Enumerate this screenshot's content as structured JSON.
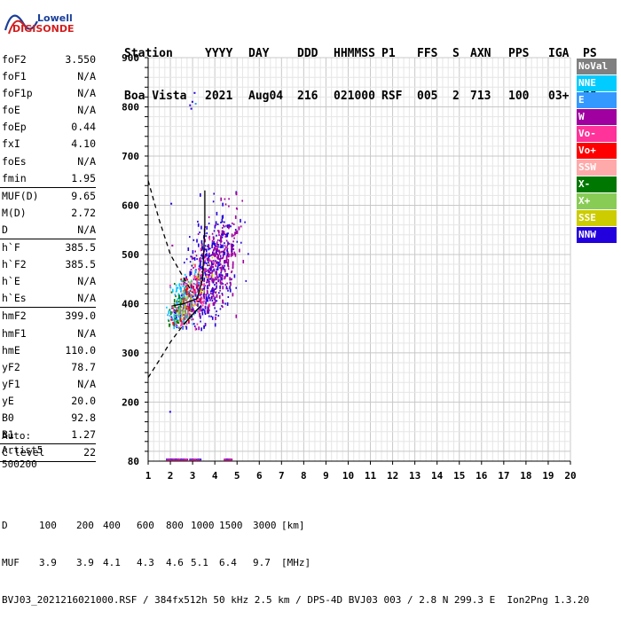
{
  "logo": {
    "line1": "Lowell",
    "line2": "DIGISONDE"
  },
  "header": {
    "labels": [
      "Station",
      "YYYY",
      "DAY",
      "DDD",
      "HHMMSS",
      "P1",
      "FFS",
      "S",
      "AXN",
      "PPS",
      "IGA",
      "PS"
    ],
    "values": [
      "Boa Vista",
      "2021",
      "Aug04",
      "216",
      "021000",
      "RSF",
      "005",
      "2",
      "713",
      "100",
      "03+",
      "30"
    ]
  },
  "params": [
    {
      "name": "foF2",
      "value": "3.550"
    },
    {
      "name": "foF1",
      "value": "N/A"
    },
    {
      "name": "foF1p",
      "value": "N/A"
    },
    {
      "name": "foE",
      "value": "N/A"
    },
    {
      "name": "foEp",
      "value": "0.44"
    },
    {
      "name": "fxI",
      "value": "4.10"
    },
    {
      "name": "foEs",
      "value": "N/A"
    },
    {
      "name": "fmin",
      "value": "1.95"
    },
    {
      "sep": true
    },
    {
      "name": "MUF(D)",
      "value": "9.65"
    },
    {
      "name": "M(D)",
      "value": "2.72"
    },
    {
      "name": "D",
      "value": "N/A"
    },
    {
      "sep": true
    },
    {
      "name": "h`F",
      "value": "385.5"
    },
    {
      "name": "h`F2",
      "value": "385.5"
    },
    {
      "name": "h`E",
      "value": "N/A"
    },
    {
      "name": "h`Es",
      "value": "N/A"
    },
    {
      "sep": true
    },
    {
      "name": "hmF2",
      "value": "399.0"
    },
    {
      "name": "hmF1",
      "value": "N/A"
    },
    {
      "name": "hmE",
      "value": "110.0"
    },
    {
      "name": "yF2",
      "value": "78.7"
    },
    {
      "name": "yF1",
      "value": "N/A"
    },
    {
      "name": "yE",
      "value": "20.0"
    },
    {
      "name": "B0",
      "value": "92.8"
    },
    {
      "name": "B1",
      "value": "1.27"
    },
    {
      "sep": true
    },
    {
      "name": "C-level",
      "value": "22"
    },
    {
      "sep": true
    }
  ],
  "auto": {
    "line1": "Auto:",
    "line2": "Artist5",
    "line3": "500200"
  },
  "legend": [
    {
      "label": "NoVal",
      "bg": "#808080",
      "fg": "#ffffff"
    },
    {
      "label": "NNE",
      "bg": "#00ccff",
      "fg": "#ffffff"
    },
    {
      "label": "E",
      "bg": "#3399ff",
      "fg": "#ffffff"
    },
    {
      "label": "W",
      "bg": "#a000a0",
      "fg": "#ffffff"
    },
    {
      "label": "Vo-",
      "bg": "#ff3399",
      "fg": "#ffffff"
    },
    {
      "label": "Vo+",
      "bg": "#ff0000",
      "fg": "#ffffff"
    },
    {
      "label": "SSW",
      "bg": "#ffaaaa",
      "fg": "#ffffff"
    },
    {
      "label": "X-",
      "bg": "#007700",
      "fg": "#ffffff"
    },
    {
      "label": "X+",
      "bg": "#88cc55",
      "fg": "#ffffff"
    },
    {
      "label": "SSE",
      "bg": "#cccc00",
      "fg": "#ffffff"
    },
    {
      "label": "NNW",
      "bg": "#2200dd",
      "fg": "#ffffff"
    }
  ],
  "bottom": {
    "d_label": "D",
    "d_values": [
      "100",
      "200",
      "400",
      "600",
      "800",
      "1000",
      "1500",
      "3000"
    ],
    "d_unit": "[km]",
    "muf_label": "MUF",
    "muf_values": [
      "3.9",
      "3.9",
      "4.1",
      "4.3",
      "4.6",
      "5.1",
      "6.4",
      "9.7"
    ],
    "muf_unit": "[MHz]",
    "footer": "BVJ03_2021216021000.RSF / 384fx512h 50 kHz 2.5 km / DPS-4D BVJ03 003 / 2.8 N 299.3 E  Ion2Png 1.3.20"
  },
  "chart_data": {
    "type": "scatter",
    "xlim": [
      1,
      20
    ],
    "ylim": [
      80,
      900
    ],
    "x_ticks": [
      1,
      2,
      3,
      4,
      5,
      6,
      7,
      8,
      9,
      10,
      11,
      12,
      13,
      14,
      15,
      16,
      17,
      18,
      19,
      20
    ],
    "y_ticks": [
      80,
      200,
      300,
      400,
      500,
      600,
      700,
      800,
      900
    ],
    "grid": true,
    "profile": [
      [
        2.05,
        395
      ],
      [
        2.6,
        400
      ],
      [
        3.2,
        410
      ],
      [
        3.45,
        450
      ],
      [
        3.5,
        500
      ],
      [
        3.55,
        560
      ],
      [
        3.55,
        630
      ]
    ],
    "profile_lower": [
      [
        1.0,
        250
      ],
      [
        1.5,
        285
      ],
      [
        2.0,
        322
      ],
      [
        2.5,
        352
      ],
      [
        3.0,
        378
      ],
      [
        3.3,
        392
      ]
    ],
    "profile_upper": [
      [
        1.0,
        650
      ],
      [
        1.5,
        570
      ],
      [
        2.0,
        500
      ],
      [
        2.5,
        460
      ],
      [
        3.0,
        422
      ]
    ],
    "clusters": [
      {
        "color": "#2200dd",
        "cx": 3.6,
        "cy": 460,
        "sx": 0.65,
        "sy": 55,
        "n": 420
      },
      {
        "color": "#a000a0",
        "cx": 4.1,
        "cy": 480,
        "sx": 0.6,
        "sy": 50,
        "n": 280
      },
      {
        "color": "#ff3399",
        "cx": 3.0,
        "cy": 420,
        "sx": 0.45,
        "sy": 35,
        "n": 110
      },
      {
        "color": "#00ccff",
        "cx": 2.4,
        "cy": 405,
        "sx": 0.3,
        "sy": 25,
        "n": 70
      },
      {
        "color": "#3399ff",
        "cx": 2.6,
        "cy": 400,
        "sx": 0.35,
        "sy": 25,
        "n": 60
      },
      {
        "color": "#007700",
        "cx": 2.3,
        "cy": 395,
        "sx": 0.25,
        "sy": 20,
        "n": 40
      },
      {
        "color": "#ff0000",
        "cx": 2.8,
        "cy": 410,
        "sx": 0.3,
        "sy": 25,
        "n": 40
      },
      {
        "color": "#88cc55",
        "cx": 2.5,
        "cy": 385,
        "sx": 0.25,
        "sy": 18,
        "n": 30
      },
      {
        "color": "#808080",
        "cx": 2.7,
        "cy": 385,
        "sx": 0.25,
        "sy": 18,
        "n": 30
      },
      {
        "color": "#cccc00",
        "cx": 3.3,
        "cy": 440,
        "sx": 0.3,
        "sy": 25,
        "n": 20
      }
    ],
    "outliers": [
      {
        "x": 2.0,
        "y": 605,
        "color": "#2200dd"
      },
      {
        "x": 1.95,
        "y": 182,
        "color": "#2200dd"
      },
      {
        "x": 2.05,
        "y": 520,
        "color": "#a000a0"
      },
      {
        "x": 2.85,
        "y": 805,
        "color": "#2200dd"
      },
      {
        "x": 2.95,
        "y": 812,
        "color": "#2200dd"
      },
      {
        "x": 3.05,
        "y": 830,
        "color": "#2200dd"
      },
      {
        "x": 3.1,
        "y": 808,
        "color": "#3399ff"
      },
      {
        "x": 2.9,
        "y": 798,
        "color": "#2200dd"
      }
    ],
    "bottom_row": [
      1.8,
      1.9,
      2.0,
      2.1,
      2.2,
      2.3,
      2.45,
      2.6,
      2.85,
      3.0,
      3.2,
      4.4,
      4.5,
      4.6
    ]
  }
}
